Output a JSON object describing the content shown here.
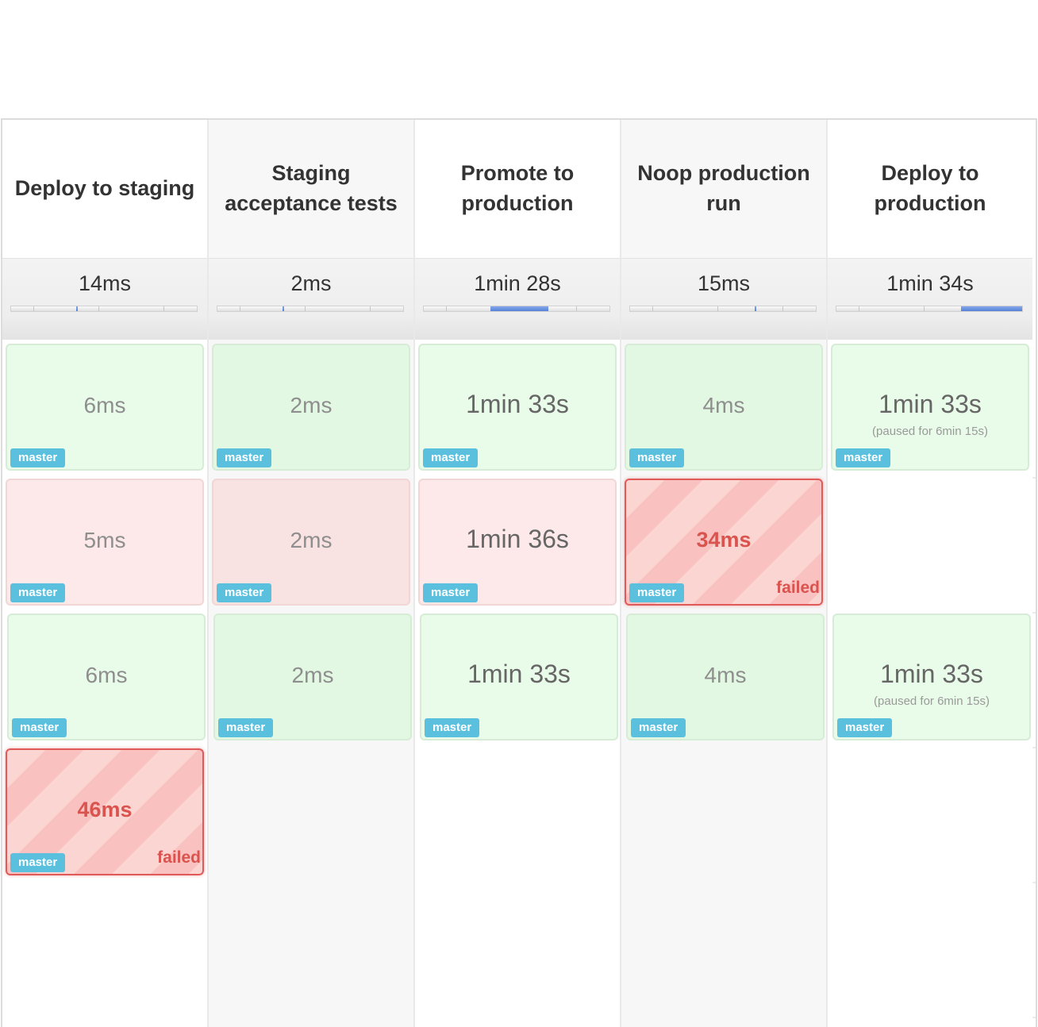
{
  "columns": [
    {
      "title": "Deploy to staging",
      "summary": "14ms",
      "progress": {
        "marker": 0.35
      }
    },
    {
      "title": "Staging acceptance tests",
      "summary": "2ms",
      "progress": {
        "marker": 0.35
      }
    },
    {
      "title": "Promote to production",
      "summary": "1min 28s",
      "progress": {
        "fill_start": 0.36,
        "fill_end": 0.67
      }
    },
    {
      "title": "Noop production run",
      "summary": "15ms",
      "progress": {
        "marker": 0.67
      }
    },
    {
      "title": "Deploy to production",
      "summary": "1min 34s",
      "progress": {
        "fill_start": 0.67,
        "fill_end": 1.0
      }
    }
  ],
  "rows": [
    [
      {
        "state": "passed",
        "duration": "6ms",
        "branch": "master"
      },
      {
        "state": "passed",
        "duration": "2ms",
        "branch": "master"
      },
      {
        "state": "passed",
        "duration": "1min 33s",
        "branch": "master"
      },
      {
        "state": "passed",
        "duration": "4ms",
        "branch": "master"
      },
      {
        "state": "passed",
        "duration": "1min 33s",
        "note": "(paused for 6min 15s)",
        "branch": "master"
      }
    ],
    [
      {
        "state": "failed-stage",
        "duration": "5ms",
        "branch": "master"
      },
      {
        "state": "failed-stage",
        "duration": "2ms",
        "branch": "master"
      },
      {
        "state": "failed-stage",
        "duration": "1min 36s",
        "branch": "master"
      },
      {
        "state": "failed",
        "duration": "34ms",
        "branch": "master",
        "status": "failed"
      },
      null
    ],
    [
      {
        "state": "passed",
        "duration": "6ms",
        "branch": "master"
      },
      {
        "state": "passed",
        "duration": "2ms",
        "branch": "master"
      },
      {
        "state": "passed",
        "duration": "1min 33s",
        "branch": "master"
      },
      {
        "state": "passed",
        "duration": "4ms",
        "branch": "master"
      },
      {
        "state": "passed",
        "duration": "1min 33s",
        "note": "(paused for 6min 15s)",
        "branch": "master"
      }
    ],
    [
      {
        "state": "failed",
        "duration": "46ms",
        "branch": "master",
        "status": "failed"
      },
      null,
      null,
      null,
      null
    ],
    [
      null,
      null,
      null,
      null,
      null
    ]
  ],
  "colors": {
    "badge": "#5bc0de",
    "failed_text": "#d9534f",
    "progress_fill": "#5680d8"
  }
}
